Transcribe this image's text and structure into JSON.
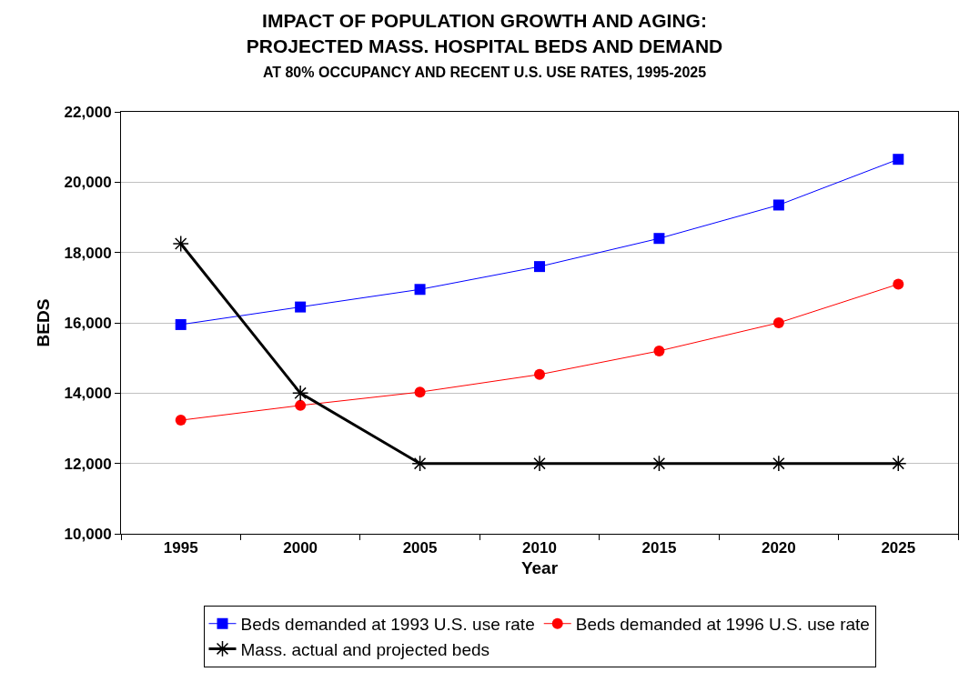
{
  "chart_data": {
    "type": "line",
    "title": "IMPACT OF POPULATION GROWTH AND AGING:\nPROJECTED MASS. HOSPITAL BEDS AND DEMAND",
    "subtitle": "AT 80% OCCUPANCY AND RECENT U.S. USE RATES, 1995-2025",
    "xlabel": "Year",
    "ylabel": "BEDS",
    "categories": [
      "1995",
      "2000",
      "2005",
      "2010",
      "2015",
      "2020",
      "2025"
    ],
    "series": [
      {
        "name": "Beds demanded at 1993 U.S. use rate",
        "color": "#0000ff",
        "marker": "square",
        "values": [
          15950,
          16450,
          16950,
          17600,
          18400,
          19350,
          20650
        ]
      },
      {
        "name": "Beds demanded at 1996 U.S. use rate",
        "color": "#ff0000",
        "marker": "circle",
        "values": [
          13230,
          13650,
          14030,
          14530,
          15200,
          16000,
          17100
        ]
      },
      {
        "name": "Mass. actual and projected beds",
        "color": "#000000",
        "marker": "cross",
        "values": [
          18250,
          14000,
          12000,
          12000,
          12000,
          12000,
          12000
        ]
      }
    ],
    "ylim": [
      10000,
      22000
    ],
    "yticks": [
      {
        "value": 10000,
        "label": "10,000"
      },
      {
        "value": 12000,
        "label": "12,000"
      },
      {
        "value": 14000,
        "label": "14,000"
      },
      {
        "value": 16000,
        "label": "16,000"
      },
      {
        "value": 18000,
        "label": "18,000"
      },
      {
        "value": 20000,
        "label": "20,000"
      },
      {
        "value": 22000,
        "label": "22,000"
      }
    ],
    "grid": "y",
    "legend": "bottom",
    "line_style": "solid"
  }
}
